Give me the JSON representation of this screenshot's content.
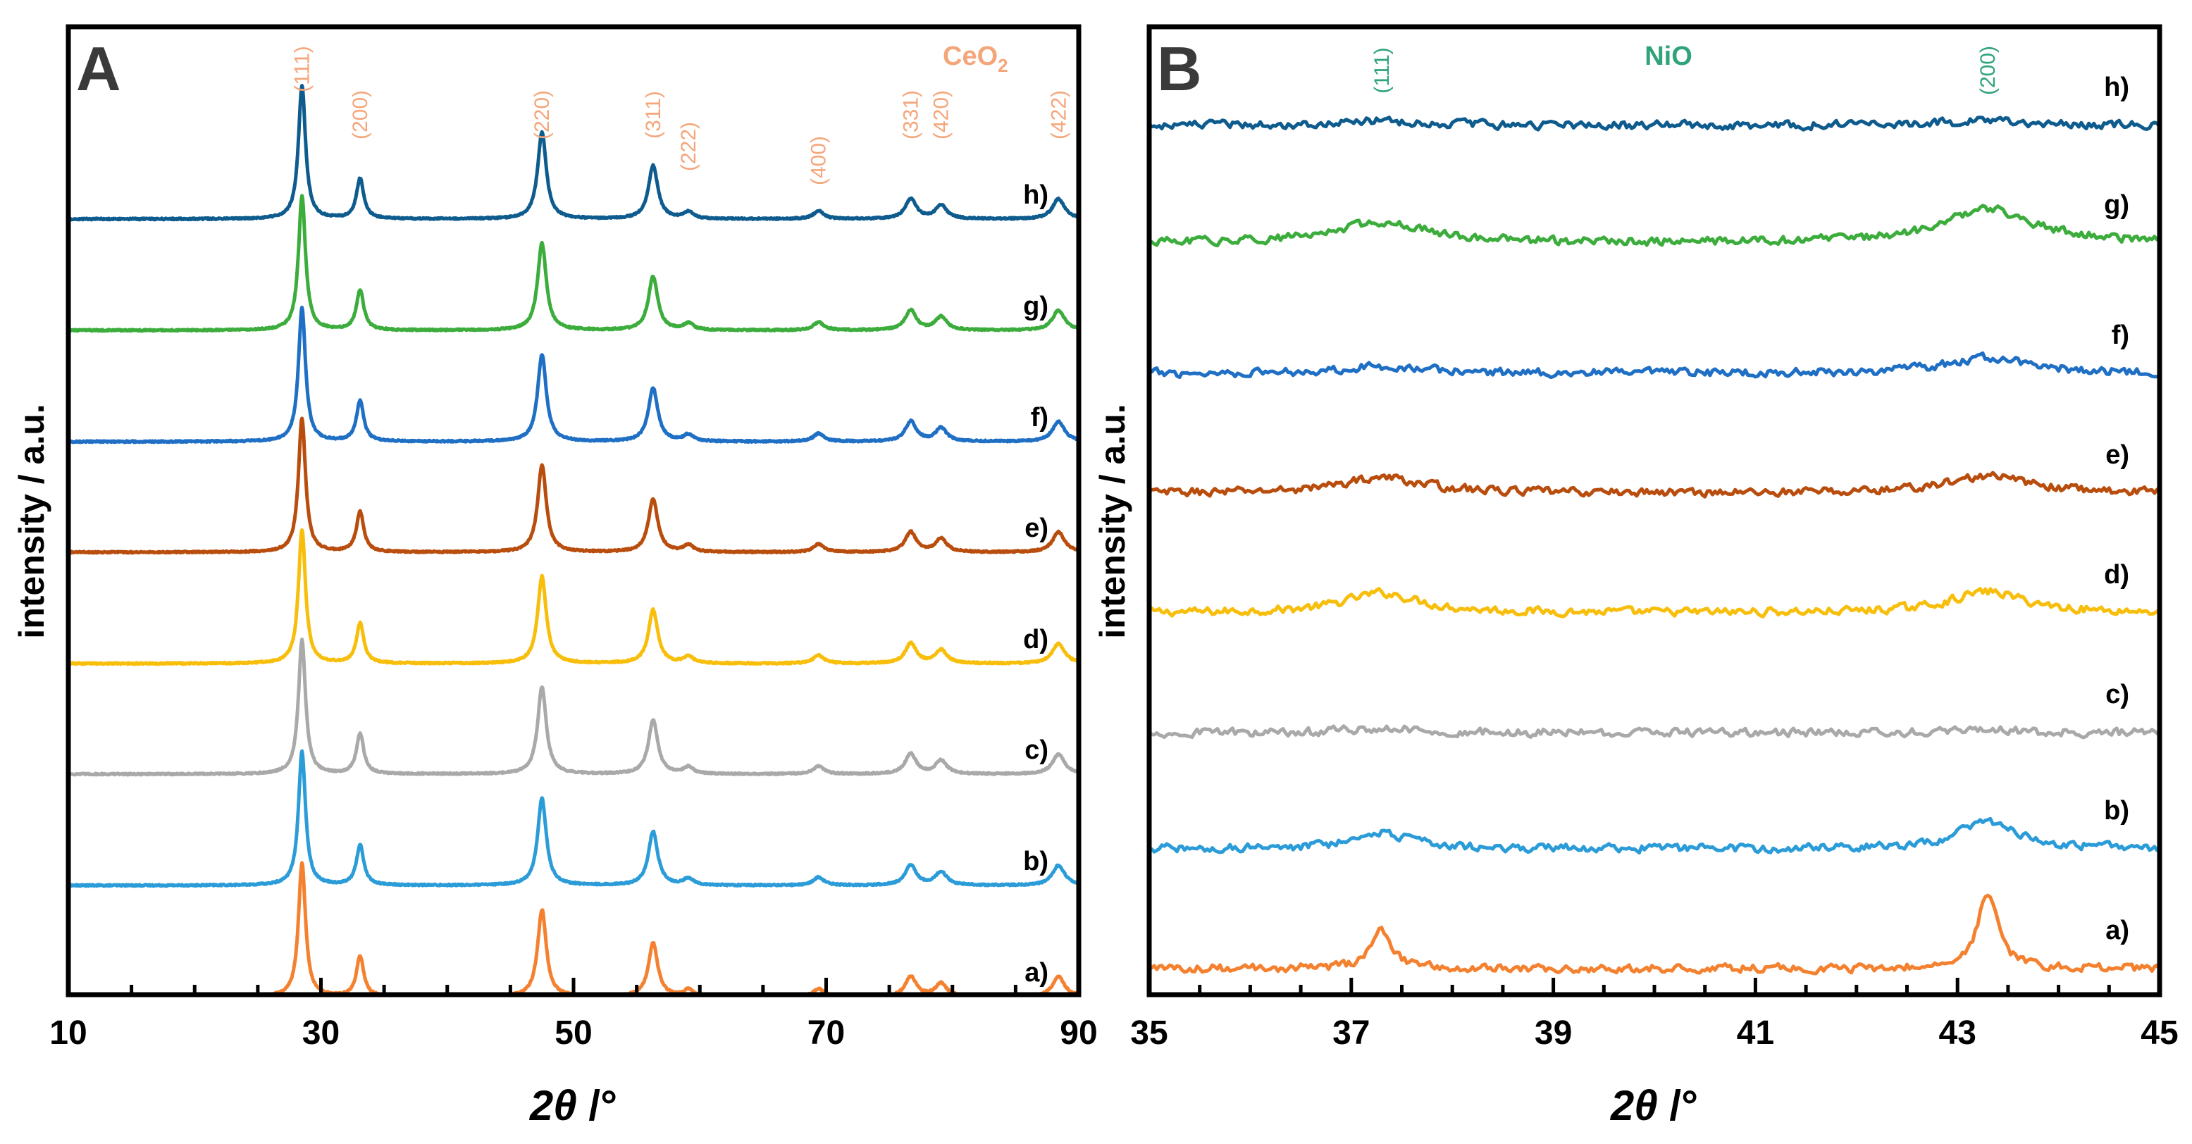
{
  "chart_data": [
    {
      "id": "A",
      "type": "line",
      "panel_letter": "A",
      "phase_label": "CeO2",
      "phase_label_main": "CeO",
      "phase_label_sub": "2",
      "xlabel_main": "2θ",
      "xlabel_unit": " /°",
      "ylabel": "intensity / a.u.",
      "xlim": [
        10,
        90
      ],
      "x_ticks": [
        "10",
        "30",
        "50",
        "70",
        "90"
      ],
      "x_tick_values": [
        10,
        30,
        50,
        70,
        90
      ],
      "reflections": [
        {
          "hkl": "(111)",
          "x": 28.5
        },
        {
          "hkl": "(200)",
          "x": 33.1
        },
        {
          "hkl": "(220)",
          "x": 47.5
        },
        {
          "hkl": "(311)",
          "x": 56.3
        },
        {
          "hkl": "(222)",
          "x": 59.1
        },
        {
          "hkl": "(400)",
          "x": 69.4
        },
        {
          "hkl": "(331)",
          "x": 76.7
        },
        {
          "hkl": "(420)",
          "x": 79.1
        },
        {
          "hkl": "(422)",
          "x": 88.4
        }
      ],
      "series": [
        {
          "name": "a)",
          "color": "#f4812f"
        },
        {
          "name": "b)",
          "color": "#2b9cd8"
        },
        {
          "name": "c)",
          "color": "#a9a9a9"
        },
        {
          "name": "d)",
          "color": "#f8be0c"
        },
        {
          "name": "e)",
          "color": "#b84d0d"
        },
        {
          "name": "f)",
          "color": "#1f6fc4"
        },
        {
          "name": "g)",
          "color": "#3cad3c"
        },
        {
          "name": "h)",
          "color": "#0e5b8e"
        }
      ],
      "peak_heights_relative": [
        1.0,
        0.3,
        0.65,
        0.4,
        0.05,
        0.06,
        0.15,
        0.1,
        0.15
      ]
    },
    {
      "id": "B",
      "type": "line",
      "panel_letter": "B",
      "phase_label": "NiO",
      "xlabel_main": "2θ",
      "xlabel_unit": " /°",
      "ylabel": "intensity / a.u.",
      "xlim": [
        35,
        45
      ],
      "x_ticks": [
        "35",
        "37",
        "39",
        "41",
        "43",
        "45"
      ],
      "x_tick_values": [
        35,
        37,
        39,
        41,
        43,
        45
      ],
      "reflections": [
        {
          "hkl": "(111)",
          "x": 37.3
        },
        {
          "hkl": "(200)",
          "x": 43.3
        }
      ],
      "series": [
        {
          "name": "a)",
          "color": "#f4812f"
        },
        {
          "name": "b)",
          "color": "#2b9cd8"
        },
        {
          "name": "c)",
          "color": "#a9a9a9"
        },
        {
          "name": "d)",
          "color": "#f8be0c"
        },
        {
          "name": "e)",
          "color": "#b84d0d"
        },
        {
          "name": "f)",
          "color": "#1f6fc4"
        },
        {
          "name": "g)",
          "color": "#3cad3c"
        },
        {
          "name": "h)",
          "color": "#0e5b8e"
        }
      ]
    }
  ]
}
